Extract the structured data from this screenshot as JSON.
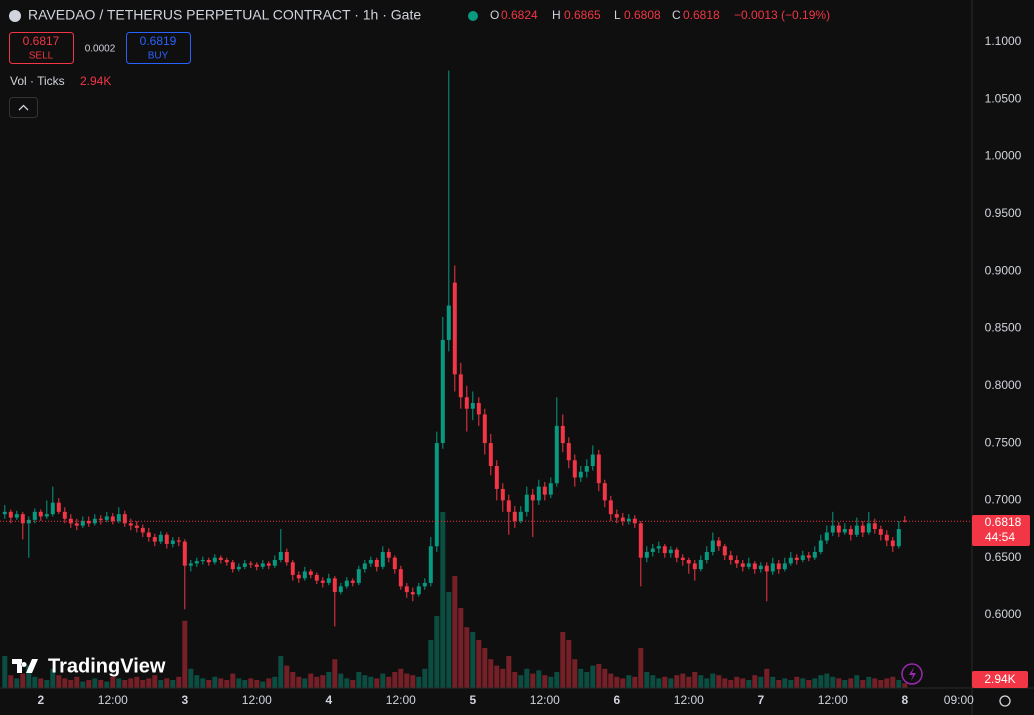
{
  "chart_data": {
    "type": "candlestick",
    "title": "RAVEDAO / TETHERUS PERPETUAL CONTRACT · 1h · Gate",
    "legend_labels": [
      "O",
      "H",
      "L",
      "C"
    ],
    "change": "−0.0013 (−0.19%)",
    "sell_price": 0.6817,
    "sell_label": "SELL",
    "spread": 0.0002,
    "buy_price": 0.6819,
    "buy_label": "BUY",
    "volume_title": "Vol · Ticks",
    "volume_last_label": "2.94K",
    "countdown": "44:54",
    "brand": "TradingView",
    "up_color": "#089981",
    "down_color": "#f23645",
    "grid": false,
    "xlim": [
      -0.8,
      161.2
    ],
    "xticks": [
      {
        "value": 6,
        "label": "2"
      },
      {
        "value": 18,
        "label": "12:00"
      },
      {
        "value": 30,
        "label": "3"
      },
      {
        "value": 42,
        "label": "12:00"
      },
      {
        "value": 54,
        "label": "4"
      },
      {
        "value": 66,
        "label": "12:00"
      },
      {
        "value": 78,
        "label": "5"
      },
      {
        "value": 90,
        "label": "12:00"
      },
      {
        "value": 102,
        "label": "6"
      },
      {
        "value": 114,
        "label": "12:00"
      },
      {
        "value": 126,
        "label": "7"
      },
      {
        "value": 138,
        "label": "12:00"
      },
      {
        "value": 150,
        "label": "8"
      },
      {
        "value": 159,
        "label": "09:00"
      }
    ],
    "ylim": [
      0.5363,
      1.1366
    ],
    "yticks": [
      {
        "value": 0.6,
        "label": "0.6000"
      },
      {
        "value": 0.65,
        "label": "0.6500"
      },
      {
        "value": 0.7,
        "label": "0.7000"
      },
      {
        "value": 0.75,
        "label": "0.7500"
      },
      {
        "value": 0.8,
        "label": "0.8000"
      },
      {
        "value": 0.85,
        "label": "0.8500"
      },
      {
        "value": 0.9,
        "label": "0.9000"
      },
      {
        "value": 0.95,
        "label": "0.9500"
      },
      {
        "value": 1.0,
        "label": "1.0000"
      },
      {
        "value": 1.05,
        "label": "1.0500"
      },
      {
        "value": 1.1,
        "label": "1.1000"
      }
    ],
    "ohlc": [
      [
        0.688,
        0.696,
        0.684,
        0.69
      ],
      [
        0.69,
        0.692,
        0.68,
        0.685
      ],
      [
        0.685,
        0.691,
        0.683,
        0.688
      ],
      [
        0.688,
        0.69,
        0.666,
        0.68
      ],
      [
        0.68,
        0.686,
        0.65,
        0.683
      ],
      [
        0.683,
        0.693,
        0.68,
        0.69
      ],
      [
        0.69,
        0.692,
        0.682,
        0.686
      ],
      [
        0.686,
        0.7,
        0.684,
        0.688
      ],
      [
        0.688,
        0.712,
        0.686,
        0.698
      ],
      [
        0.698,
        0.702,
        0.688,
        0.69
      ],
      [
        0.69,
        0.694,
        0.68,
        0.684
      ],
      [
        0.684,
        0.688,
        0.676,
        0.68
      ],
      [
        0.68,
        0.684,
        0.674,
        0.678
      ],
      [
        0.678,
        0.686,
        0.676,
        0.682
      ],
      [
        0.682,
        0.686,
        0.677,
        0.68
      ],
      [
        0.68,
        0.688,
        0.678,
        0.684
      ],
      [
        0.684,
        0.687,
        0.679,
        0.683
      ],
      [
        0.683,
        0.69,
        0.681,
        0.686
      ],
      [
        0.686,
        0.689,
        0.679,
        0.682
      ],
      [
        0.682,
        0.694,
        0.68,
        0.688
      ],
      [
        0.688,
        0.691,
        0.677,
        0.68
      ],
      [
        0.68,
        0.684,
        0.674,
        0.678
      ],
      [
        0.678,
        0.682,
        0.672,
        0.676
      ],
      [
        0.676,
        0.679,
        0.668,
        0.672
      ],
      [
        0.672,
        0.676,
        0.664,
        0.668
      ],
      [
        0.668,
        0.671,
        0.66,
        0.664
      ],
      [
        0.664,
        0.673,
        0.662,
        0.67
      ],
      [
        0.67,
        0.672,
        0.658,
        0.662
      ],
      [
        0.662,
        0.668,
        0.659,
        0.665
      ],
      [
        0.665,
        0.668,
        0.66,
        0.664
      ],
      [
        0.664,
        0.666,
        0.605,
        0.643
      ],
      [
        0.643,
        0.648,
        0.638,
        0.645
      ],
      [
        0.645,
        0.65,
        0.642,
        0.647
      ],
      [
        0.647,
        0.651,
        0.644,
        0.648
      ],
      [
        0.648,
        0.65,
        0.643,
        0.646
      ],
      [
        0.646,
        0.653,
        0.644,
        0.65
      ],
      [
        0.65,
        0.652,
        0.645,
        0.648
      ],
      [
        0.648,
        0.65,
        0.643,
        0.646
      ],
      [
        0.646,
        0.648,
        0.637,
        0.64
      ],
      [
        0.64,
        0.645,
        0.638,
        0.642
      ],
      [
        0.642,
        0.648,
        0.64,
        0.645
      ],
      [
        0.645,
        0.647,
        0.641,
        0.644
      ],
      [
        0.644,
        0.646,
        0.639,
        0.642
      ],
      [
        0.642,
        0.648,
        0.64,
        0.645
      ],
      [
        0.645,
        0.647,
        0.64,
        0.643
      ],
      [
        0.643,
        0.652,
        0.641,
        0.648
      ],
      [
        0.648,
        0.675,
        0.646,
        0.655
      ],
      [
        0.655,
        0.658,
        0.643,
        0.646
      ],
      [
        0.646,
        0.648,
        0.63,
        0.635
      ],
      [
        0.635,
        0.638,
        0.628,
        0.632
      ],
      [
        0.632,
        0.642,
        0.63,
        0.638
      ],
      [
        0.638,
        0.64,
        0.632,
        0.635
      ],
      [
        0.635,
        0.637,
        0.627,
        0.63
      ],
      [
        0.63,
        0.633,
        0.624,
        0.628
      ],
      [
        0.628,
        0.636,
        0.626,
        0.632
      ],
      [
        0.632,
        0.634,
        0.59,
        0.62
      ],
      [
        0.62,
        0.628,
        0.618,
        0.625
      ],
      [
        0.625,
        0.633,
        0.623,
        0.63
      ],
      [
        0.63,
        0.632,
        0.625,
        0.628
      ],
      [
        0.628,
        0.643,
        0.626,
        0.64
      ],
      [
        0.64,
        0.648,
        0.637,
        0.645
      ],
      [
        0.645,
        0.651,
        0.642,
        0.648
      ],
      [
        0.648,
        0.65,
        0.638,
        0.642
      ],
      [
        0.642,
        0.66,
        0.64,
        0.655
      ],
      [
        0.655,
        0.658,
        0.646,
        0.65
      ],
      [
        0.65,
        0.652,
        0.636,
        0.64
      ],
      [
        0.64,
        0.643,
        0.622,
        0.625
      ],
      [
        0.625,
        0.628,
        0.615,
        0.62
      ],
      [
        0.62,
        0.624,
        0.612,
        0.618
      ],
      [
        0.618,
        0.628,
        0.616,
        0.625
      ],
      [
        0.625,
        0.632,
        0.622,
        0.628
      ],
      [
        0.628,
        0.668,
        0.625,
        0.66
      ],
      [
        0.66,
        0.76,
        0.655,
        0.75
      ],
      [
        0.75,
        0.86,
        0.745,
        0.84
      ],
      [
        0.84,
        1.075,
        0.83,
        0.87
      ],
      [
        0.89,
        0.905,
        0.795,
        0.81
      ],
      [
        0.81,
        0.82,
        0.78,
        0.79
      ],
      [
        0.79,
        0.8,
        0.76,
        0.78
      ],
      [
        0.78,
        0.795,
        0.77,
        0.785
      ],
      [
        0.785,
        0.79,
        0.765,
        0.775
      ],
      [
        0.775,
        0.78,
        0.74,
        0.75
      ],
      [
        0.75,
        0.758,
        0.722,
        0.73
      ],
      [
        0.73,
        0.735,
        0.7,
        0.71
      ],
      [
        0.71,
        0.715,
        0.69,
        0.7
      ],
      [
        0.7,
        0.705,
        0.67,
        0.69
      ],
      [
        0.69,
        0.695,
        0.676,
        0.682
      ],
      [
        0.682,
        0.695,
        0.68,
        0.69
      ],
      [
        0.69,
        0.712,
        0.686,
        0.705
      ],
      [
        0.705,
        0.71,
        0.668,
        0.7
      ],
      [
        0.7,
        0.718,
        0.696,
        0.712
      ],
      [
        0.712,
        0.716,
        0.7,
        0.705
      ],
      [
        0.705,
        0.72,
        0.702,
        0.715
      ],
      [
        0.715,
        0.79,
        0.712,
        0.765
      ],
      [
        0.765,
        0.775,
        0.742,
        0.75
      ],
      [
        0.75,
        0.755,
        0.728,
        0.735
      ],
      [
        0.735,
        0.74,
        0.712,
        0.72
      ],
      [
        0.72,
        0.73,
        0.716,
        0.725
      ],
      [
        0.725,
        0.736,
        0.72,
        0.73
      ],
      [
        0.73,
        0.748,
        0.726,
        0.74
      ],
      [
        0.74,
        0.744,
        0.708,
        0.715
      ],
      [
        0.715,
        0.718,
        0.694,
        0.7
      ],
      [
        0.7,
        0.704,
        0.682,
        0.688
      ],
      [
        0.688,
        0.692,
        0.68,
        0.685
      ],
      [
        0.685,
        0.689,
        0.678,
        0.682
      ],
      [
        0.682,
        0.688,
        0.679,
        0.684
      ],
      [
        0.684,
        0.687,
        0.676,
        0.68
      ],
      [
        0.68,
        0.682,
        0.625,
        0.65
      ],
      [
        0.65,
        0.66,
        0.646,
        0.655
      ],
      [
        0.655,
        0.662,
        0.651,
        0.658
      ],
      [
        0.658,
        0.664,
        0.654,
        0.66
      ],
      [
        0.66,
        0.662,
        0.65,
        0.654
      ],
      [
        0.654,
        0.66,
        0.65,
        0.657
      ],
      [
        0.657,
        0.659,
        0.646,
        0.65
      ],
      [
        0.65,
        0.653,
        0.643,
        0.648
      ],
      [
        0.648,
        0.65,
        0.636,
        0.645
      ],
      [
        0.645,
        0.648,
        0.63,
        0.64
      ],
      [
        0.64,
        0.652,
        0.638,
        0.648
      ],
      [
        0.648,
        0.66,
        0.645,
        0.655
      ],
      [
        0.655,
        0.672,
        0.652,
        0.665
      ],
      [
        0.665,
        0.668,
        0.656,
        0.66
      ],
      [
        0.66,
        0.662,
        0.648,
        0.652
      ],
      [
        0.652,
        0.656,
        0.644,
        0.648
      ],
      [
        0.648,
        0.652,
        0.641,
        0.645
      ],
      [
        0.645,
        0.648,
        0.638,
        0.642
      ],
      [
        0.642,
        0.65,
        0.64,
        0.645
      ],
      [
        0.645,
        0.647,
        0.636,
        0.64
      ],
      [
        0.64,
        0.646,
        0.637,
        0.643
      ],
      [
        0.643,
        0.646,
        0.612,
        0.638
      ],
      [
        0.638,
        0.65,
        0.635,
        0.645
      ],
      [
        0.645,
        0.648,
        0.636,
        0.64
      ],
      [
        0.64,
        0.65,
        0.638,
        0.645
      ],
      [
        0.645,
        0.655,
        0.643,
        0.65
      ],
      [
        0.65,
        0.653,
        0.644,
        0.648
      ],
      [
        0.648,
        0.656,
        0.646,
        0.652
      ],
      [
        0.652,
        0.655,
        0.647,
        0.65
      ],
      [
        0.65,
        0.66,
        0.648,
        0.655
      ],
      [
        0.655,
        0.67,
        0.653,
        0.665
      ],
      [
        0.665,
        0.678,
        0.662,
        0.672
      ],
      [
        0.672,
        0.69,
        0.669,
        0.678
      ],
      [
        0.678,
        0.681,
        0.668,
        0.672
      ],
      [
        0.672,
        0.68,
        0.67,
        0.675
      ],
      [
        0.675,
        0.678,
        0.665,
        0.67
      ],
      [
        0.67,
        0.685,
        0.668,
        0.678
      ],
      [
        0.678,
        0.682,
        0.668,
        0.672
      ],
      [
        0.672,
        0.69,
        0.67,
        0.68
      ],
      [
        0.68,
        0.684,
        0.671,
        0.675
      ],
      [
        0.675,
        0.678,
        0.665,
        0.67
      ],
      [
        0.67,
        0.674,
        0.66,
        0.665
      ],
      [
        0.665,
        0.668,
        0.655,
        0.66
      ],
      [
        0.66,
        0.682,
        0.658,
        0.675
      ],
      [
        0.6824,
        0.6865,
        0.6808,
        0.6818
      ]
    ],
    "volume": [
      20,
      8,
      6,
      9,
      14,
      7,
      6,
      5,
      12,
      8,
      6,
      5,
      7,
      4,
      5,
      6,
      5,
      4,
      7,
      6,
      5,
      6,
      7,
      5,
      6,
      8,
      5,
      6,
      5,
      7,
      42,
      12,
      8,
      6,
      5,
      7,
      6,
      5,
      9,
      6,
      5,
      6,
      5,
      4,
      6,
      7,
      20,
      14,
      10,
      7,
      6,
      9,
      7,
      8,
      10,
      18,
      9,
      6,
      5,
      10,
      8,
      7,
      6,
      9,
      7,
      10,
      12,
      9,
      8,
      7,
      12,
      30,
      45,
      110,
      60,
      70,
      50,
      38,
      35,
      30,
      25,
      18,
      14,
      12,
      20,
      10,
      8,
      12,
      9,
      11,
      8,
      7,
      10,
      35,
      30,
      18,
      12,
      10,
      14,
      15,
      12,
      9,
      7,
      6,
      8,
      7,
      25,
      10,
      8,
      6,
      7,
      6,
      8,
      9,
      7,
      10,
      8,
      6,
      9,
      8,
      6,
      5,
      7,
      6,
      5,
      8,
      7,
      12,
      7,
      5,
      6,
      5,
      7,
      6,
      5,
      6,
      8,
      9,
      7,
      6,
      5,
      6,
      8,
      5,
      7,
      6,
      5,
      6,
      7,
      5,
      2.94
    ]
  }
}
